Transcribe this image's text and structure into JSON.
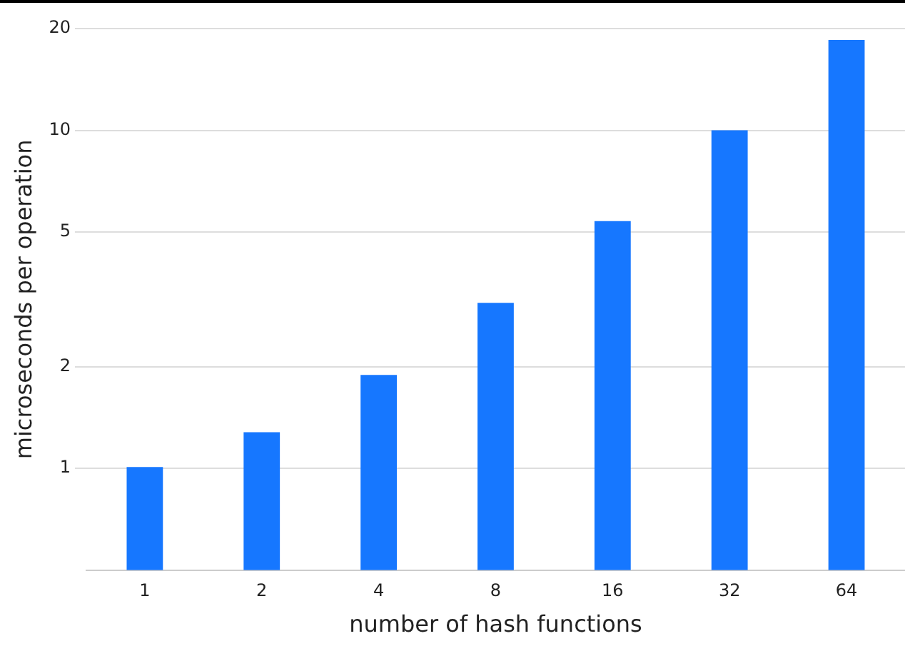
{
  "chart_data": {
    "type": "bar",
    "xlabel": "number of hash functions",
    "ylabel": "microseconds per operation",
    "categories": [
      "1",
      "2",
      "4",
      "8",
      "16",
      "32",
      "64"
    ],
    "values": [
      1.01,
      1.28,
      1.89,
      3.09,
      5.39,
      10,
      18.5
    ],
    "color": "#1677ff",
    "log": "y",
    "ylim": [
      0.5,
      20
    ],
    "yticks": [
      1,
      2,
      5,
      10,
      20
    ],
    "grid": "y",
    "legend": false
  }
}
